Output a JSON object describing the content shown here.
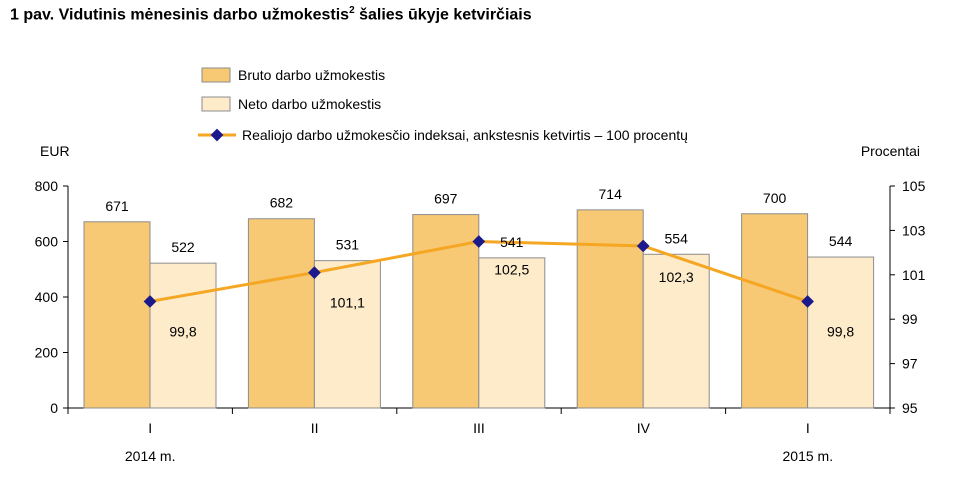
{
  "title": {
    "text": "1 pav. Vidutinis mėnesinis darbo užmokestis",
    "superscript": "2",
    "suffix": " šalies ūkyje ketvirčiais"
  },
  "colors": {
    "gross": "#f7c974",
    "net": "#fdebc9",
    "bar_stroke": "#8c8c8c",
    "index_line": "#f5a623",
    "index_marker": "#1a1a8c"
  },
  "chart_data": {
    "type": "bar",
    "categories": [
      "I",
      "II",
      "III",
      "IV",
      "I"
    ],
    "year_labels": [
      {
        "category_index": 0,
        "label": "2014 m."
      },
      {
        "category_index": 4,
        "label": "2015 m."
      }
    ],
    "series": [
      {
        "name": "Bruto darbo užmokestis",
        "type": "bar",
        "axis": "left",
        "values": [
          671,
          682,
          697,
          714,
          700
        ]
      },
      {
        "name": "Neto darbo užmokestis",
        "type": "bar",
        "axis": "left",
        "values": [
          522,
          531,
          541,
          554,
          544
        ]
      },
      {
        "name": "Realiojo darbo užmokesčio indeksai, ankstesnis ketvirtis – 100 procentų",
        "type": "line",
        "axis": "right",
        "values": [
          99.8,
          101.1,
          102.5,
          102.3,
          99.8
        ],
        "labels": [
          "99,8",
          "101,1",
          "102,5",
          "102,3",
          "99,8"
        ]
      }
    ],
    "y_left": {
      "label": "EUR",
      "min": 0,
      "max": 800,
      "ticks": [
        0,
        200,
        400,
        600,
        800
      ]
    },
    "y_right": {
      "label": "Procentai",
      "min": 95,
      "max": 105,
      "ticks": [
        95,
        97,
        99,
        101,
        103,
        105
      ]
    },
    "legend_position": "top-center",
    "grid": false
  }
}
